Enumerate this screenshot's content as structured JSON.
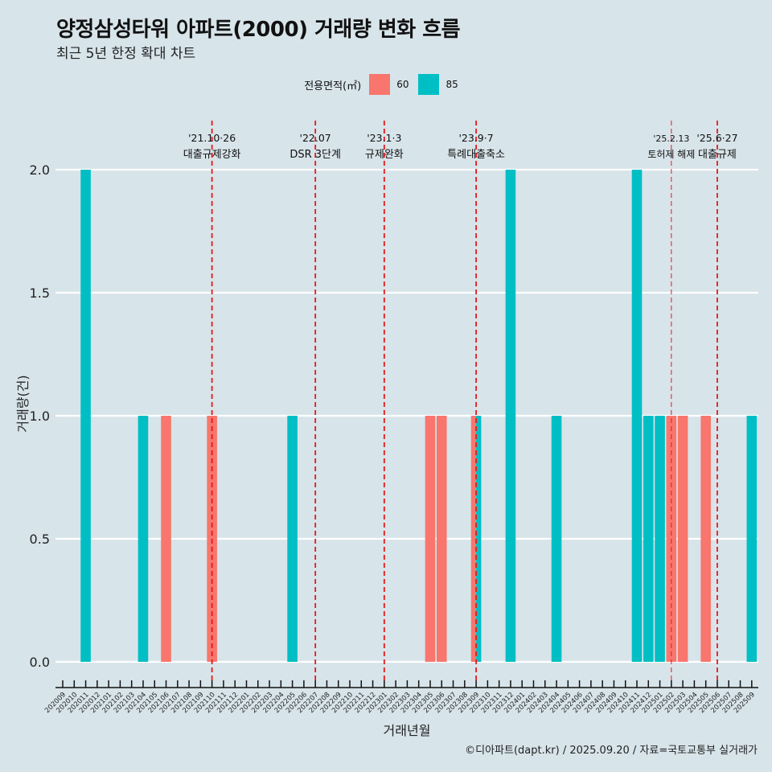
{
  "title": "양정삼성타워 아파트(2000) 거래량 변화 흐름",
  "subtitle": "최근 5년 한정 확대 차트",
  "caption": "©디아파트(dapt.kr) / 2025.09.20 / 자료=국토교통부 실거래가",
  "legend": {
    "title": "전용면적(㎡)",
    "items": [
      {
        "label": "60",
        "color": "#f8766d"
      },
      {
        "label": "85",
        "color": "#00bfc4"
      }
    ]
  },
  "colors": {
    "background": "#d7e4ea",
    "grid": "#ffffff",
    "event_line": "#e31a1c"
  },
  "chart_data": {
    "type": "bar",
    "title": "양정삼성타워 아파트(2000) 거래량 변화 흐름",
    "subtitle": "최근 5년 한정 확대 차트",
    "xlabel": "거래년월",
    "ylabel": "거래량(건)",
    "ylim": [
      0,
      2
    ],
    "yticks": [
      "0.0",
      "0.5",
      "1.0",
      "1.5",
      "2.0"
    ],
    "ytick_values": [
      0,
      0.5,
      1.0,
      1.5,
      2.0
    ],
    "grid": true,
    "legend_position": "top",
    "categories": [
      "202009",
      "202010",
      "202011",
      "202012",
      "202101",
      "202102",
      "202103",
      "202104",
      "202105",
      "202106",
      "202107",
      "202108",
      "202109",
      "202110",
      "202111",
      "202112",
      "202201",
      "202202",
      "202203",
      "202204",
      "202205",
      "202206",
      "202207",
      "202208",
      "202209",
      "202210",
      "202211",
      "202212",
      "202301",
      "202302",
      "202303",
      "202304",
      "202305",
      "202306",
      "202307",
      "202308",
      "202309",
      "202310",
      "202311",
      "202312",
      "202401",
      "202402",
      "202403",
      "202404",
      "202405",
      "202406",
      "202407",
      "202408",
      "202409",
      "202410",
      "202411",
      "202412",
      "202501",
      "202502",
      "202503",
      "202504",
      "202505",
      "202506",
      "202507",
      "202508",
      "202509"
    ],
    "bars": [
      {
        "month": "202011",
        "series": "85",
        "value": 2
      },
      {
        "month": "202104",
        "series": "85",
        "value": 1
      },
      {
        "month": "202106",
        "series": "60",
        "value": 1
      },
      {
        "month": "202110",
        "series": "60",
        "value": 1
      },
      {
        "month": "202205",
        "series": "85",
        "value": 1
      },
      {
        "month": "202305",
        "series": "60",
        "value": 1
      },
      {
        "month": "202306",
        "series": "60",
        "value": 1
      },
      {
        "month": "202309",
        "series": "60",
        "value": 1,
        "dodge": "left"
      },
      {
        "month": "202309",
        "series": "85",
        "value": 1,
        "dodge": "right"
      },
      {
        "month": "202312",
        "series": "85",
        "value": 2
      },
      {
        "month": "202404",
        "series": "85",
        "value": 1
      },
      {
        "month": "202411",
        "series": "85",
        "value": 2
      },
      {
        "month": "202412",
        "series": "85",
        "value": 1
      },
      {
        "month": "202501",
        "series": "85",
        "value": 1
      },
      {
        "month": "202502",
        "series": "60",
        "value": 1
      },
      {
        "month": "202503",
        "series": "60",
        "value": 1
      },
      {
        "month": "202505",
        "series": "60",
        "value": 1
      },
      {
        "month": "202509",
        "series": "85",
        "value": 1
      }
    ],
    "events": [
      {
        "month": "202110",
        "date": "'21.10·26",
        "label": "대출규제강화",
        "style": "normal"
      },
      {
        "month": "202207",
        "date": "'22.07",
        "label": "DSR 3단계",
        "style": "normal"
      },
      {
        "month": "202301",
        "date": "'23.1·3",
        "label": "규제완화",
        "style": "normal"
      },
      {
        "month": "202309",
        "date": "'23.9·7",
        "label": "특례대출축소",
        "style": "normal"
      },
      {
        "month": "202502",
        "date": "'25.2.13",
        "label": "토허제 해제",
        "style": "thin"
      },
      {
        "month": "202506",
        "date": "'25.6·27",
        "label": "대출규제",
        "style": "normal"
      }
    ]
  }
}
